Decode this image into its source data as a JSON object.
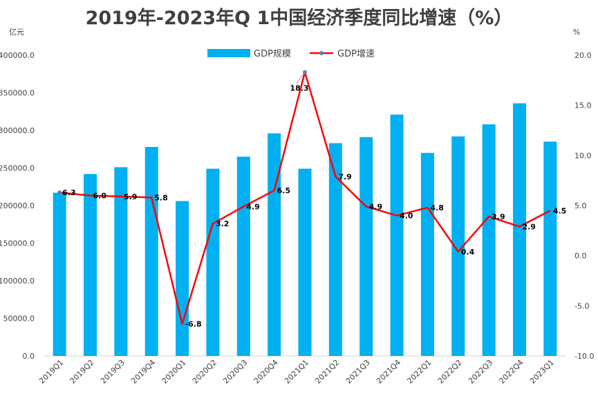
{
  "chart_data": {
    "type": "bar+line",
    "title": "2019年-2023年Q 1中国经济季度同比增速（%）",
    "left_axis_unit": "亿元",
    "right_axis_unit": "%",
    "categories": [
      "2019Q1",
      "2019Q2",
      "2019Q3",
      "2019Q4",
      "2020Q1",
      "2020Q2",
      "2020Q3",
      "2020Q4",
      "2021Q1",
      "2021Q2",
      "2021Q3",
      "2021Q4",
      "2022Q1",
      "2022Q2",
      "2022Q3",
      "2022Q4",
      "2023Q1"
    ],
    "series": [
      {
        "name": "GDP规模",
        "type": "bar",
        "axis": "left",
        "color": "#00b0f0",
        "values": [
          217000,
          242000,
          251000,
          278000,
          206000,
          249000,
          265000,
          296000,
          249000,
          283000,
          291000,
          321000,
          270000,
          292000,
          308000,
          336000,
          285000
        ]
      },
      {
        "name": "GDP增速",
        "type": "line",
        "axis": "right",
        "color": "#ff0000",
        "values": [
          6.3,
          6.0,
          5.9,
          5.8,
          -6.8,
          3.2,
          4.9,
          6.5,
          18.3,
          7.9,
          4.9,
          4.0,
          4.8,
          0.4,
          3.9,
          2.9,
          4.5
        ],
        "labels": [
          "6.3",
          "6.0",
          "5.9",
          "5.8",
          "-6.8",
          "3.2",
          "4.9",
          "6.5",
          "18.3",
          "7.9",
          "4.9",
          "4.0",
          "4.8",
          "0.4",
          "3.9",
          "2.9",
          "4.5"
        ]
      }
    ],
    "left_ticks": [
      "0.0",
      "50000.0",
      "100000.0",
      "150000.0",
      "200000.0",
      "250000.0",
      "300000.0",
      "350000.0",
      "400000.0"
    ],
    "left_tick_values": [
      0,
      50000,
      100000,
      150000,
      200000,
      250000,
      300000,
      350000,
      400000
    ],
    "right_ticks": [
      "-10.0",
      "-5.0",
      "0.0",
      "5.0",
      "10.0",
      "15.0",
      "20.0"
    ],
    "right_tick_values": [
      -10,
      -5,
      0,
      5,
      10,
      15,
      20
    ],
    "ylim_left": [
      0,
      400000
    ],
    "ylim_right": [
      -10,
      20
    ],
    "legend_position": "top",
    "grid": false
  }
}
